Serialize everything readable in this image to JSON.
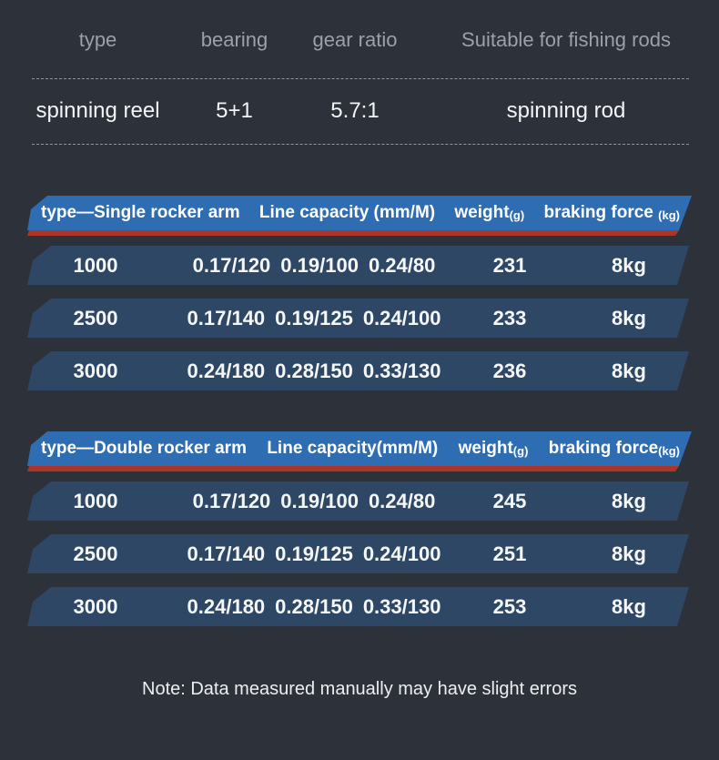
{
  "page": {
    "background": "#2d3139",
    "note": "Note: Data measured manually may have slight errors"
  },
  "colors": {
    "accent_blue": "#2f6db3",
    "accent_red": "#ae3428",
    "row_navy": "#2e4765",
    "header_gray": "#9ba1a9"
  },
  "top_table": {
    "headers": [
      "type",
      "bearing",
      "gear ratio",
      "Suitable for fishing rods"
    ],
    "values": [
      "spinning reel",
      "5+1",
      "5.7:1",
      "spinning rod"
    ]
  },
  "tables": [
    {
      "title": "type—Single rocker arm",
      "capacity_header": "Line capacity (mm/M)",
      "weight_label": "weight",
      "weight_unit": "(g)",
      "brake_label": "braking force ",
      "brake_unit": "(kg)",
      "rows": [
        {
          "type": "1000",
          "caps": [
            "0.17/120",
            "0.19/100",
            "0.24/80"
          ],
          "weight": "231",
          "brake": "8kg"
        },
        {
          "type": "2500",
          "caps": [
            "0.17/140",
            "0.19/125",
            "0.24/100"
          ],
          "weight": "233",
          "brake": "8kg"
        },
        {
          "type": "3000",
          "caps": [
            "0.24/180",
            "0.28/150",
            "0.33/130"
          ],
          "weight": "236",
          "brake": "8kg"
        }
      ]
    },
    {
      "title": "type—Double rocker arm",
      "capacity_header": "Line capacity(mm/M)",
      "weight_label": "weight",
      "weight_unit": "(g)",
      "brake_label": "braking force",
      "brake_unit": "(kg)",
      "rows": [
        {
          "type": "1000",
          "caps": [
            "0.17/120",
            "0.19/100",
            "0.24/80"
          ],
          "weight": "245",
          "brake": "8kg"
        },
        {
          "type": "2500",
          "caps": [
            "0.17/140",
            "0.19/125",
            "0.24/100"
          ],
          "weight": "251",
          "brake": "8kg"
        },
        {
          "type": "3000",
          "caps": [
            "0.24/180",
            "0.28/150",
            "0.33/130"
          ],
          "weight": "253",
          "brake": "8kg"
        }
      ]
    }
  ]
}
